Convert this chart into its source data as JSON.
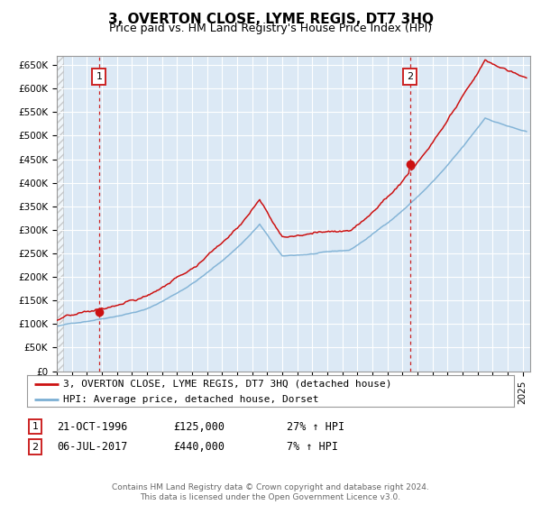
{
  "title": "3, OVERTON CLOSE, LYME REGIS, DT7 3HQ",
  "subtitle": "Price paid vs. HM Land Registry's House Price Index (HPI)",
  "ylim": [
    0,
    670000
  ],
  "yticks": [
    0,
    50000,
    100000,
    150000,
    200000,
    250000,
    300000,
    350000,
    400000,
    450000,
    500000,
    550000,
    600000,
    650000
  ],
  "ytick_labels": [
    "£0",
    "£50K",
    "£100K",
    "£150K",
    "£200K",
    "£250K",
    "£300K",
    "£350K",
    "£400K",
    "£450K",
    "£500K",
    "£550K",
    "£600K",
    "£650K"
  ],
  "plot_bg_color": "#dce9f5",
  "hpi_color": "#7bafd4",
  "price_color": "#cc1111",
  "vline_color": "#cc2222",
  "purchase1_date": 1996.81,
  "purchase1_price": 125000,
  "purchase2_date": 2017.51,
  "purchase2_price": 440000,
  "legend_line1": "3, OVERTON CLOSE, LYME REGIS, DT7 3HQ (detached house)",
  "legend_line2": "HPI: Average price, detached house, Dorset",
  "annotation1_date": "21-OCT-1996",
  "annotation1_price": "£125,000",
  "annotation1_hpi": "27% ↑ HPI",
  "annotation2_date": "06-JUL-2017",
  "annotation2_price": "£440,000",
  "annotation2_hpi": "7% ↑ HPI",
  "footer": "Contains HM Land Registry data © Crown copyright and database right 2024.\nThis data is licensed under the Open Government Licence v3.0.",
  "xmin": 1994.0,
  "xmax": 2025.5
}
